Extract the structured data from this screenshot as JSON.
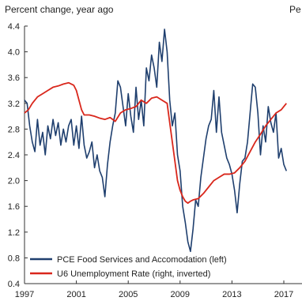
{
  "chart_data": {
    "type": "line",
    "ylabel_left": "Percent change, year ago",
    "ylabel_right": "Pe",
    "ylim_left": [
      0.4,
      4.4
    ],
    "yticks_left": [
      "4.4",
      "4.0",
      "3.6",
      "3.2",
      "2.8",
      "2.4",
      "2.0",
      "1.6",
      "1.2",
      "0.8",
      "0.4"
    ],
    "xticks": [
      "1997",
      "2001",
      "2005",
      "2009",
      "2013",
      "2017"
    ],
    "grid": false,
    "legend_position": "bottom-left",
    "series": [
      {
        "name": "PCE Food Services and Accomodation (left)",
        "color": "#1f3f6e",
        "axis": "left",
        "x": [
          1997.0,
          1997.2,
          1997.4,
          1997.6,
          1997.8,
          1998.0,
          1998.2,
          1998.4,
          1998.6,
          1998.8,
          1999.0,
          1999.2,
          1999.4,
          1999.6,
          1999.8,
          2000.0,
          2000.2,
          2000.4,
          2000.6,
          2000.8,
          2001.0,
          2001.2,
          2001.4,
          2001.6,
          2001.8,
          2002.0,
          2002.2,
          2002.4,
          2002.6,
          2002.8,
          2003.0,
          2003.2,
          2003.4,
          2003.6,
          2003.8,
          2004.0,
          2004.2,
          2004.4,
          2004.6,
          2004.8,
          2005.0,
          2005.2,
          2005.4,
          2005.6,
          2005.8,
          2006.0,
          2006.2,
          2006.4,
          2006.6,
          2006.8,
          2007.0,
          2007.2,
          2007.4,
          2007.6,
          2007.8,
          2008.0,
          2008.2,
          2008.4,
          2008.6,
          2008.8,
          2009.0,
          2009.2,
          2009.4,
          2009.6,
          2009.8,
          2010.0,
          2010.2,
          2010.4,
          2010.6,
          2010.8,
          2011.0,
          2011.2,
          2011.4,
          2011.6,
          2011.8,
          2012.0,
          2012.2,
          2012.4,
          2012.6,
          2012.8,
          2013.0,
          2013.2,
          2013.4,
          2013.6,
          2013.8,
          2014.0,
          2014.2,
          2014.4,
          2014.6,
          2014.8,
          2015.0,
          2015.2,
          2015.4,
          2015.6,
          2015.8,
          2016.0,
          2016.2,
          2016.4,
          2016.6,
          2016.8,
          2017.0,
          2017.2
        ],
        "y": [
          3.25,
          3.2,
          2.85,
          2.6,
          2.45,
          2.95,
          2.55,
          2.75,
          2.4,
          2.85,
          2.65,
          2.95,
          2.7,
          2.9,
          2.55,
          2.8,
          2.6,
          2.85,
          2.95,
          2.55,
          2.85,
          2.5,
          3.0,
          2.55,
          2.35,
          2.45,
          2.6,
          2.2,
          2.4,
          2.15,
          2.05,
          1.75,
          2.25,
          2.6,
          2.85,
          3.05,
          3.55,
          3.45,
          3.15,
          2.85,
          3.35,
          3.0,
          2.75,
          3.45,
          2.95,
          3.25,
          2.85,
          3.75,
          3.55,
          3.95,
          3.75,
          3.45,
          4.15,
          3.85,
          4.35,
          4.0,
          3.25,
          2.85,
          3.05,
          2.4,
          2.15,
          1.6,
          1.35,
          1.05,
          0.9,
          1.25,
          1.7,
          1.6,
          2.05,
          2.35,
          2.65,
          2.85,
          2.95,
          3.4,
          2.75,
          3.3,
          2.75,
          2.55,
          2.35,
          2.25,
          2.1,
          1.85,
          1.5,
          1.95,
          2.3,
          2.35,
          2.6,
          3.05,
          3.5,
          3.45,
          3.05,
          2.4,
          2.85,
          2.6,
          3.15,
          2.9,
          2.75,
          3.05,
          2.35,
          2.5,
          2.25,
          2.15
        ]
      },
      {
        "name": "U6 Unemployment Rate (right, inverted)",
        "color": "#d9271c",
        "axis": "left",
        "x": [
          1997.0,
          1997.3,
          1997.6,
          1998.0,
          1998.4,
          1998.8,
          1999.2,
          1999.6,
          2000.0,
          2000.4,
          2000.8,
          2001.0,
          2001.2,
          2001.4,
          2001.6,
          2002.0,
          2002.4,
          2002.8,
          2003.2,
          2003.6,
          2004.0,
          2004.4,
          2004.8,
          2005.2,
          2005.6,
          2006.0,
          2006.4,
          2006.8,
          2007.2,
          2007.6,
          2008.0,
          2008.2,
          2008.4,
          2008.6,
          2008.8,
          2009.0,
          2009.2,
          2009.4,
          2009.6,
          2009.8,
          2010.0,
          2010.4,
          2010.8,
          2011.2,
          2011.6,
          2012.0,
          2012.4,
          2012.8,
          2013.2,
          2013.6,
          2014.0,
          2014.4,
          2014.8,
          2015.2,
          2015.6,
          2016.0,
          2016.4,
          2016.8,
          2017.2
        ],
        "y": [
          3.05,
          3.1,
          3.2,
          3.3,
          3.35,
          3.4,
          3.45,
          3.47,
          3.5,
          3.52,
          3.48,
          3.4,
          3.25,
          3.1,
          3.02,
          3.02,
          3.0,
          2.97,
          2.95,
          2.98,
          2.92,
          3.05,
          3.1,
          3.12,
          3.15,
          3.25,
          3.2,
          3.28,
          3.3,
          3.25,
          3.2,
          2.9,
          2.6,
          2.3,
          2.0,
          1.85,
          1.75,
          1.68,
          1.65,
          1.68,
          1.7,
          1.72,
          1.8,
          1.9,
          2.0,
          2.05,
          2.1,
          2.1,
          2.12,
          2.2,
          2.3,
          2.45,
          2.6,
          2.72,
          2.85,
          2.95,
          3.05,
          3.1,
          3.2
        ]
      }
    ]
  }
}
